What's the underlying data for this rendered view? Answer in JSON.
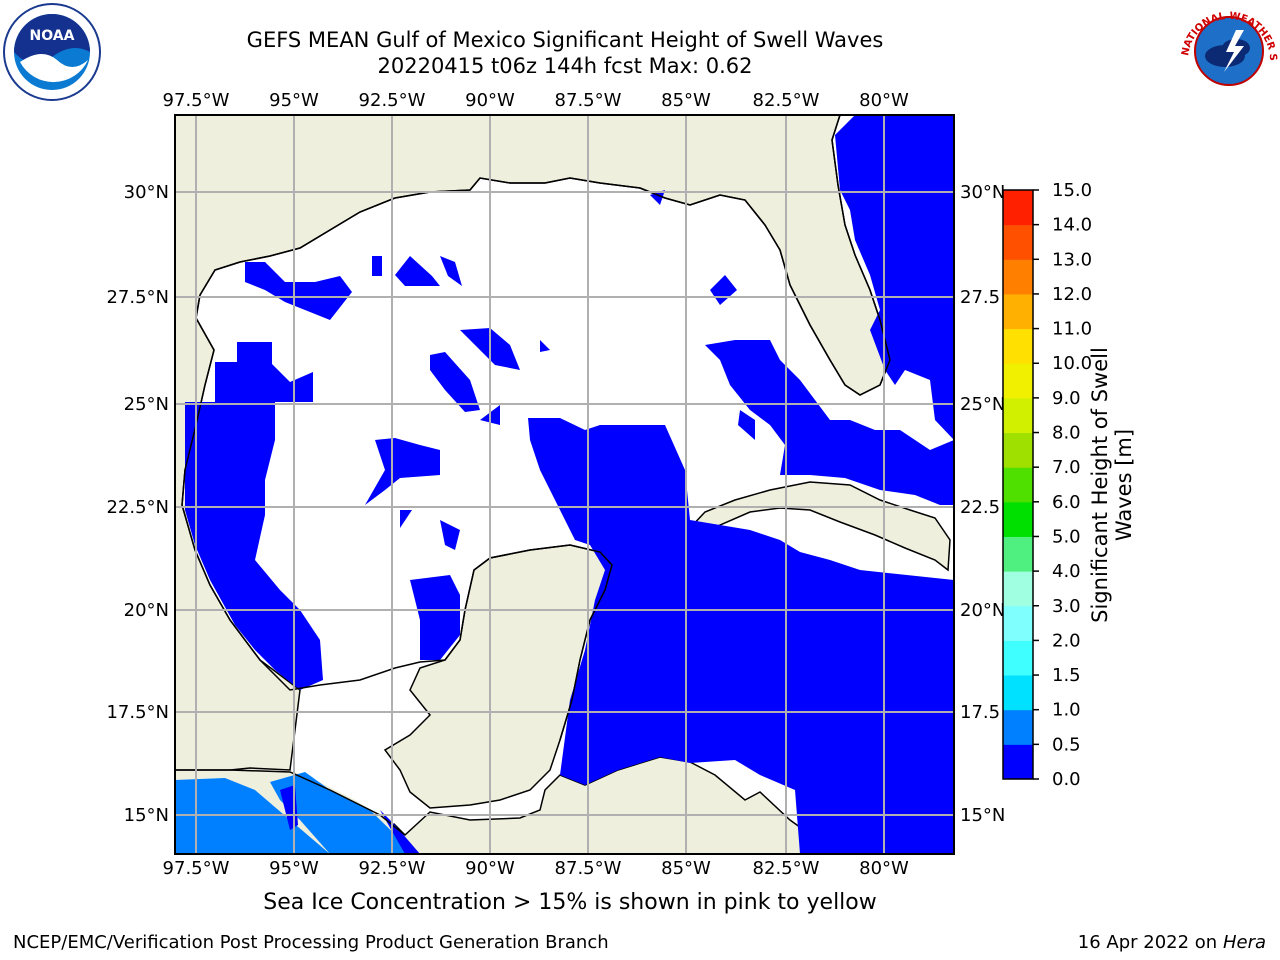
{
  "title": {
    "line1": "GEFS MEAN Gulf of Mexico Significant Height of Swell Waves",
    "line2": "20220415 t06z 144h fcst   Max: 0.62"
  },
  "map": {
    "lon_ticks": [
      "97.5°W",
      "95°W",
      "92.5°W",
      "90°W",
      "87.5°W",
      "85°W",
      "82.5°W",
      "80°W"
    ],
    "lat_ticks_left": [
      "30°N",
      "27.5°N",
      "25°N",
      "22.5°N",
      "20°N",
      "17.5°N",
      "15°N"
    ],
    "lat_ticks_right": [
      "30°N",
      "27.5",
      "25°N",
      "22.5",
      "20°N",
      "17.5",
      "15°N"
    ],
    "land_color": "#efefde",
    "ocean_blue": "#0000ff",
    "ocean_light_blue": "#0080ff"
  },
  "colorbar": {
    "label": "Significant Height of Swell Waves [m]",
    "ticks": [
      "0.0",
      "0.5",
      "1.0",
      "1.5",
      "2.0",
      "3.0",
      "4.0",
      "5.0",
      "6.0",
      "7.0",
      "8.0",
      "9.0",
      "10.0",
      "11.0",
      "12.0",
      "13.0",
      "14.0",
      "15.0"
    ],
    "colors": [
      "#0000ff",
      "#0080ff",
      "#00e0ff",
      "#40ffff",
      "#80ffff",
      "#a0ffe0",
      "#50f080",
      "#00e000",
      "#50e000",
      "#a0e000",
      "#d0f000",
      "#f0f000",
      "#ffe000",
      "#ffb000",
      "#ff8000",
      "#ff5000",
      "#ff2000"
    ]
  },
  "note": "Sea Ice Concentration > 15% is shown in pink to yellow",
  "footer": {
    "left": "NCEP/EMC/Verification Post Processing Product Generation Branch",
    "right_date": "16 Apr 2022 on ",
    "right_machine": "Hera"
  },
  "logos": {
    "left_icon": "noaa-logo",
    "left_text": "NOAA",
    "right_icon": "national-weather-service-logo",
    "right_text": "NATIONAL WEATHER SERVICE"
  }
}
